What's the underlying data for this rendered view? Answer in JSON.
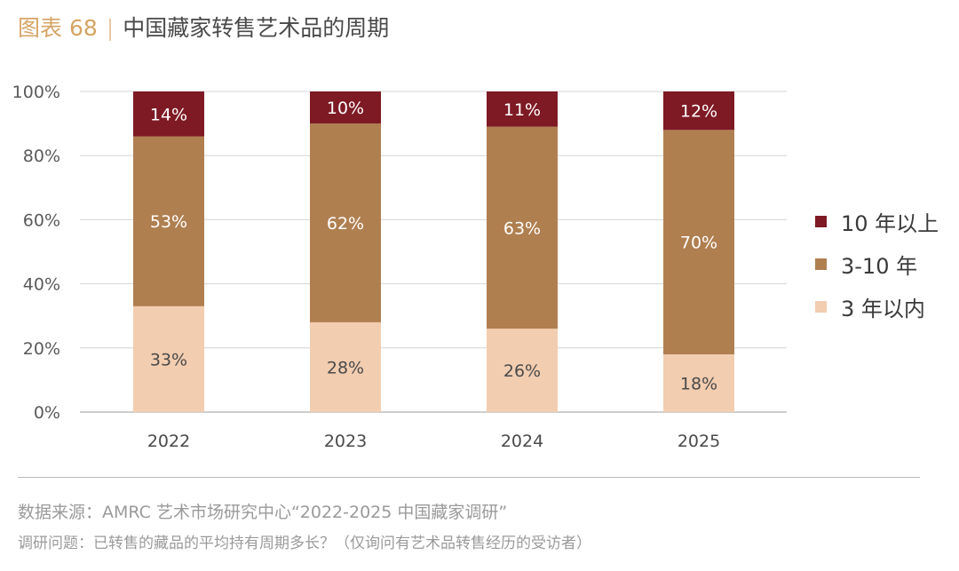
{
  "header": {
    "figure_number": "图表 68",
    "separator": "|",
    "title": "中国藏家转售艺术品的周期"
  },
  "colors": {
    "over_10": "#7e1a24",
    "3_to_10": "#b07f50",
    "under_3": "#f2cdb0",
    "title_accent": "#d6a466",
    "gridline": "#d4d4d4"
  },
  "chart_data": {
    "type": "bar",
    "stacked": true,
    "title": "中国藏家转售艺术品的周期",
    "xlabel": "",
    "ylabel": "",
    "categories": [
      "2022",
      "2023",
      "2024",
      "2025"
    ],
    "series": [
      {
        "name": "3 年以内",
        "values": [
          33,
          28,
          26,
          18
        ],
        "labels": [
          "33%",
          "28%",
          "26%",
          "18%"
        ],
        "color": "#f2cdb0",
        "label_color": "#4a4a4a"
      },
      {
        "name": "3-10 年",
        "values": [
          53,
          62,
          63,
          70
        ],
        "labels": [
          "53%",
          "62%",
          "63%",
          "70%"
        ],
        "color": "#b07f50",
        "label_color": "#ffffff"
      },
      {
        "name": "10 年以上",
        "values": [
          14,
          10,
          11,
          12
        ],
        "labels": [
          "14%",
          "10%",
          "11%",
          "12%"
        ],
        "color": "#7e1a24",
        "label_color": "#ffffff"
      }
    ],
    "ylim": [
      0,
      100
    ],
    "yticks": [
      0,
      20,
      40,
      60,
      80,
      100
    ],
    "ytick_labels": [
      "0%",
      "20%",
      "40%",
      "60%",
      "80%",
      "100%"
    ],
    "grid": true,
    "legend_position": "right"
  },
  "legend": {
    "items": [
      {
        "label": "10 年以上",
        "color": "#7e1a24"
      },
      {
        "label": "3-10 年",
        "color": "#b07f50"
      },
      {
        "label": "3 年以内",
        "color": "#f2cdb0"
      }
    ]
  },
  "footer": {
    "source": "数据来源：AMRC 艺术市场研究中心“2022-2025 中国藏家调研”",
    "question": "调研问题：已转售的藏品的平均持有周期多长？（仅询问有艺术品转售经历的受访者）"
  }
}
